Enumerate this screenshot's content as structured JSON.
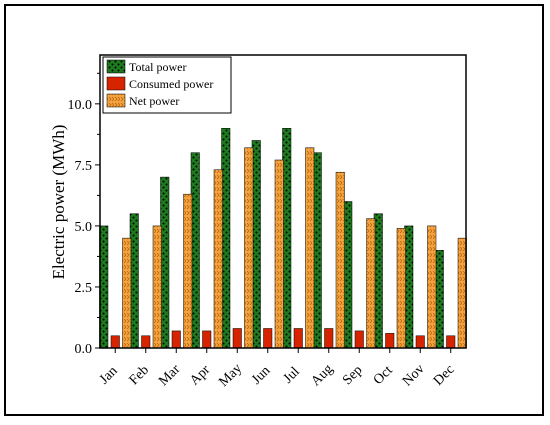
{
  "chart_data": {
    "type": "bar",
    "title": "",
    "xlabel": "",
    "ylabel": "Electric power (MWh)",
    "ylim": [
      0,
      12
    ],
    "yticks": [
      "0.0",
      "2.5",
      "5.0",
      "7.5",
      "10.0"
    ],
    "categories": [
      "Jan",
      "Feb",
      "Mar",
      "Apr",
      "May",
      "Jun",
      "Jul",
      "Aug",
      "Sep",
      "Oct",
      "Nov",
      "Dec"
    ],
    "legend_position": "top-left",
    "grid": false,
    "series": [
      {
        "name": "Total power",
        "color": "#1e7a1e",
        "pattern": "dots",
        "values": [
          5.0,
          5.5,
          7.0,
          8.0,
          9.0,
          8.5,
          9.0,
          8.0,
          6.0,
          5.5,
          5.0,
          4.0
        ]
      },
      {
        "name": "Consumed power",
        "color": "#d62400",
        "pattern": "solid",
        "values": [
          0.5,
          0.5,
          0.7,
          0.7,
          0.8,
          0.8,
          0.8,
          0.8,
          0.7,
          0.6,
          0.5,
          0.5
        ]
      },
      {
        "name": "Net power",
        "color": "#f4a340",
        "pattern": "chevrons",
        "values": [
          4.5,
          5.0,
          6.3,
          7.3,
          8.2,
          7.7,
          8.2,
          7.2,
          5.3,
          4.9,
          5.0,
          4.5
        ]
      }
    ]
  }
}
